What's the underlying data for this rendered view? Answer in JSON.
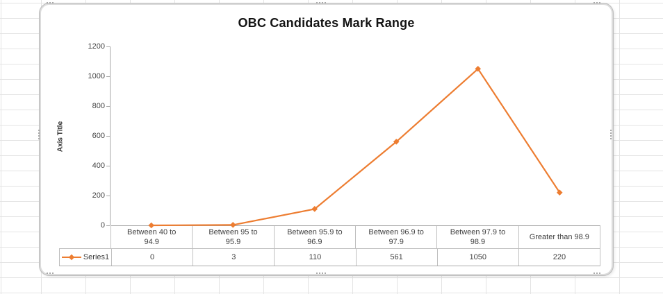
{
  "worksheet": {
    "gridline_color": "#E3E3E3"
  },
  "chart": {
    "series_color": "#ED7D31",
    "axis_color": "#A6A6A6",
    "table_border_color": "#BFBFBF",
    "text_color": "#404040",
    "title_color": "#141414",
    "legend_label": "Series1"
  },
  "chart_data": {
    "type": "line",
    "title": "OBC Candidates Mark Range",
    "xlabel": "",
    "ylabel": "Axis Title",
    "categories": [
      "Between 40 to 94.9",
      "Between 95 to 95.9",
      "Between 95.9 to 96.9",
      "Between 96.9 to 97.9",
      "Between 97.9 to 98.9",
      "Greater than 98.9"
    ],
    "categories_display": [
      [
        "Between 40 to",
        "94.9"
      ],
      [
        "Between 95 to",
        "95.9"
      ],
      [
        "Between 95.9 to",
        "96.9"
      ],
      [
        "Between 96.9 to",
        "97.9"
      ],
      [
        "Between 97.9 to",
        "98.9"
      ],
      [
        "Greater than 98.9"
      ]
    ],
    "series": [
      {
        "name": "Series1",
        "values": [
          0,
          3,
          110,
          561,
          1050,
          220
        ],
        "color": "#ED7D31",
        "marker": "diamond"
      }
    ],
    "ylim": [
      0,
      1200
    ],
    "y_ticks": [
      0,
      200,
      400,
      600,
      800,
      1000,
      1200
    ],
    "grid": false,
    "legend_position": "data-table-left",
    "data_table_shown": true
  }
}
